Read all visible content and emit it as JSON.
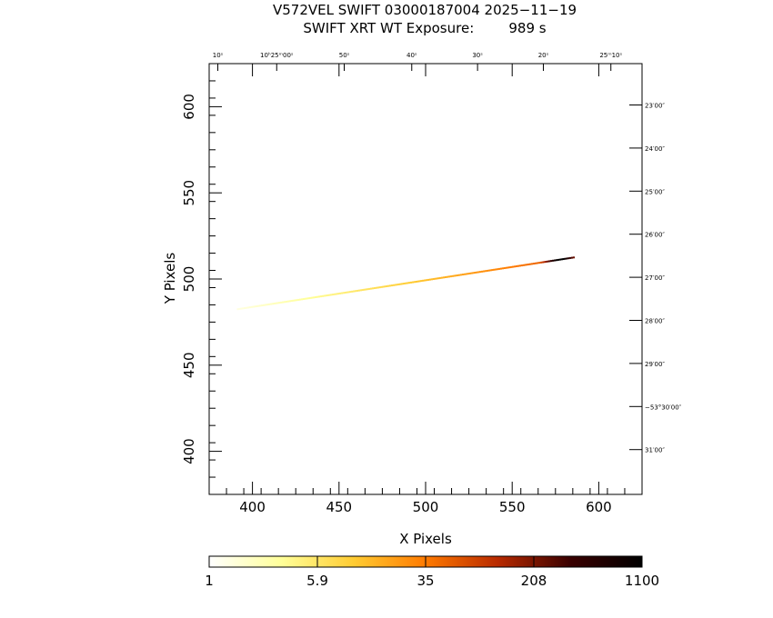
{
  "title_line1": "V572VEL SWIFT 03000187004 2025−11−19",
  "title_line2": "SWIFT XRT WT Exposure:        989 s",
  "chart_data": {
    "type": "heatmap",
    "title": "V572VEL SWIFT 03000187004 2025−11−19",
    "subtitle": "SWIFT XRT WT Exposure:        989 s",
    "xlabel": "X Pixels",
    "ylabel": "Y Pixels",
    "xlim": [
      375,
      625
    ],
    "ylim": [
      375,
      625
    ],
    "x_ticks": [
      400,
      450,
      500,
      550,
      600
    ],
    "y_ticks": [
      400,
      450,
      500,
      550,
      600
    ],
    "x_tick_labels": [
      "400",
      "450",
      "500",
      "550",
      "600"
    ],
    "y_tick_labels": [
      "400",
      "450",
      "500",
      "550",
      "600"
    ],
    "ra_ticks": [
      {
        "x": 380,
        "label": "10ˢ"
      },
      {
        "x": 414,
        "label": "10ʰ25ᵐ00ˢ"
      },
      {
        "x": 453,
        "label": "50ˢ"
      },
      {
        "x": 492,
        "label": "40ˢ"
      },
      {
        "x": 530,
        "label": "30ˢ"
      },
      {
        "x": 568,
        "label": "20ˢ"
      },
      {
        "x": 607,
        "label": "25ᵐ10ˢ"
      }
    ],
    "dec_ticks": [
      {
        "y": 601,
        "label": "23′00″"
      },
      {
        "y": 576,
        "label": "24′00″"
      },
      {
        "y": 551,
        "label": "25′00″"
      },
      {
        "y": 526,
        "label": "26′00″"
      },
      {
        "y": 501,
        "label": "27′00″"
      },
      {
        "y": 476,
        "label": "28′00″"
      },
      {
        "y": 451,
        "label": "29′00″"
      },
      {
        "y": 426,
        "label": "−53°30′00″"
      },
      {
        "y": 401,
        "label": "31′00″"
      }
    ],
    "streak": {
      "x_start": 391,
      "x_end": 585,
      "y_start": 482.5,
      "y_end": 512.5,
      "count_start": 1,
      "count_peak": 1100,
      "x_peak": 577
    },
    "colorbar": {
      "scale": "log",
      "min": 1,
      "max": 1100,
      "tick_labels": [
        "1",
        "5.9",
        "35",
        "208",
        "1100"
      ],
      "colors": [
        "#ffffff",
        "#ffff99",
        "#ffcc33",
        "#ff7a00",
        "#b82a00",
        "#3a0000",
        "#000000"
      ]
    }
  }
}
